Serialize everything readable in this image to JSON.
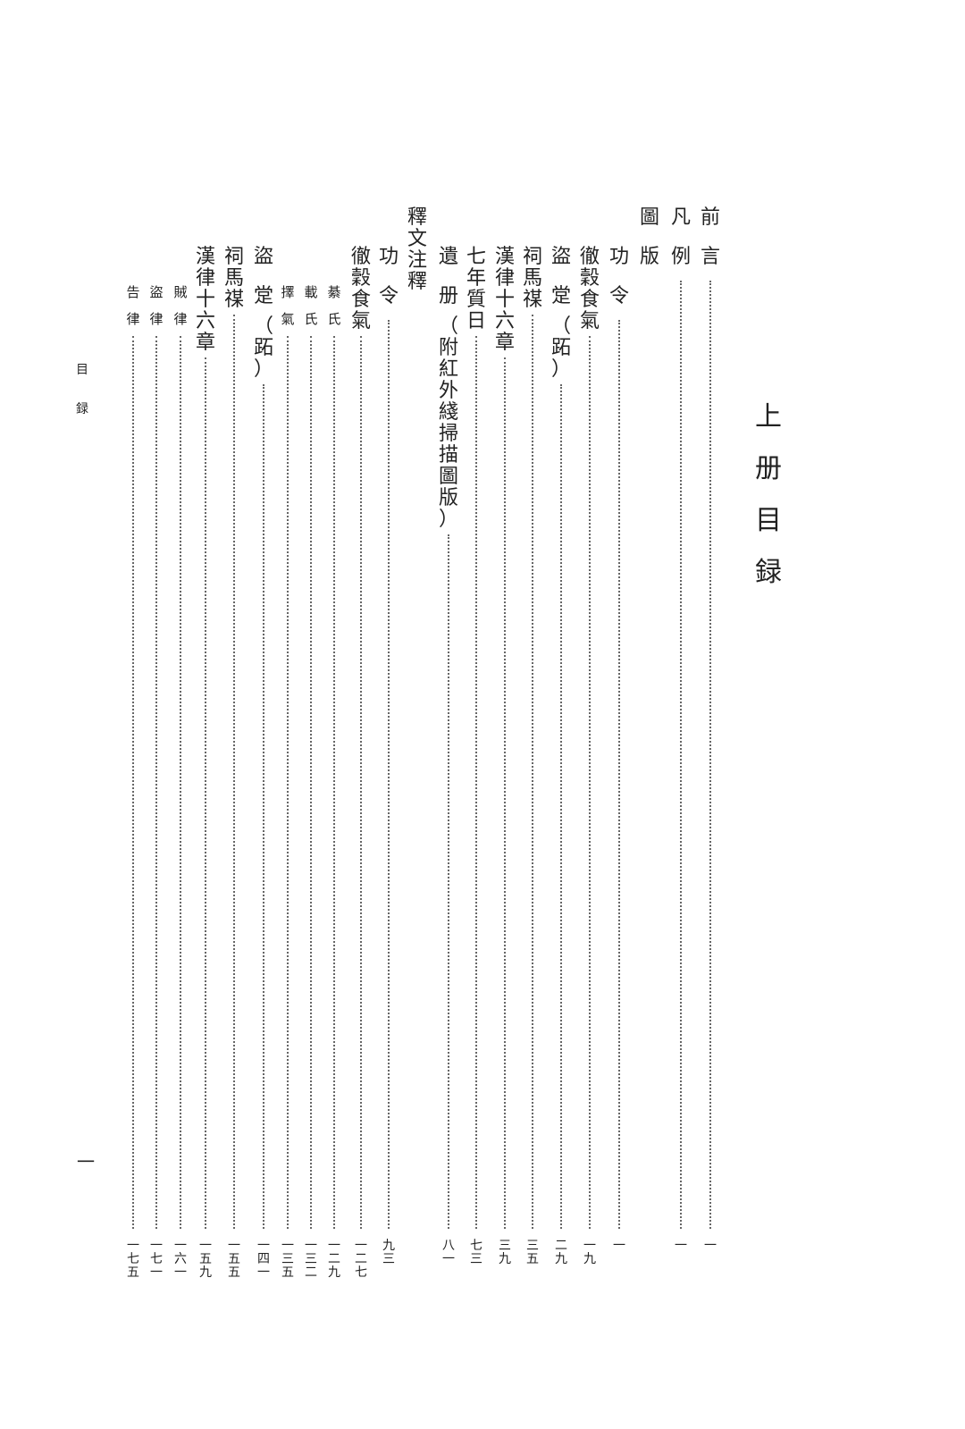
{
  "title": "上册目録",
  "running_head": "目録",
  "folio": "一",
  "entries": [
    {
      "level": 1,
      "label": "前言",
      "suffix": "",
      "page": "一"
    },
    {
      "level": 1,
      "label": "凡例",
      "suffix": "",
      "page": "一"
    },
    {
      "level": 1,
      "label": "圖版",
      "suffix": "",
      "page": ""
    },
    {
      "level": 2,
      "label": "功令",
      "suffix": "",
      "page": "一"
    },
    {
      "level": 2,
      "label": "徹穀食氣",
      "suffix": "",
      "page": "一九"
    },
    {
      "level": 2,
      "label": "盜䟫",
      "suffix": "（跖）",
      "page": "二九"
    },
    {
      "level": 2,
      "label": "祠馬禖",
      "suffix": "",
      "page": "三五"
    },
    {
      "level": 2,
      "label": "漢律十六章",
      "suffix": "",
      "page": "三九"
    },
    {
      "level": 2,
      "label": "七年質日",
      "suffix": "",
      "page": "七三"
    },
    {
      "level": 2,
      "label": "遺册",
      "suffix": "（附紅外綫掃描圖版）",
      "page": "八一"
    },
    {
      "level": 1,
      "label": "釋文注釋",
      "suffix": "",
      "page": ""
    },
    {
      "level": 2,
      "label": "功令",
      "suffix": "",
      "page": "九三"
    },
    {
      "level": 2,
      "label": "徹穀食氣",
      "suffix": "",
      "page": "一二七"
    },
    {
      "level": 3,
      "label": "綦氏",
      "suffix": "",
      "page": "一二九"
    },
    {
      "level": 3,
      "label": "載氏",
      "suffix": "",
      "page": "一三二"
    },
    {
      "level": 3,
      "label": "擇氣",
      "suffix": "",
      "page": "一三五"
    },
    {
      "level": 2,
      "label": "盜䟫",
      "suffix": "（跖）",
      "page": "一四一"
    },
    {
      "level": 2,
      "label": "祠馬禖",
      "suffix": "",
      "page": "一五五"
    },
    {
      "level": 2,
      "label": "漢律十六章",
      "suffix": "",
      "page": "一五九"
    },
    {
      "level": 3,
      "label": "賊律",
      "suffix": "",
      "page": "一六一"
    },
    {
      "level": 3,
      "label": "盜律",
      "suffix": "",
      "page": "一七一"
    },
    {
      "level": 3,
      "label": "告律",
      "suffix": "",
      "page": "一七五"
    }
  ]
}
